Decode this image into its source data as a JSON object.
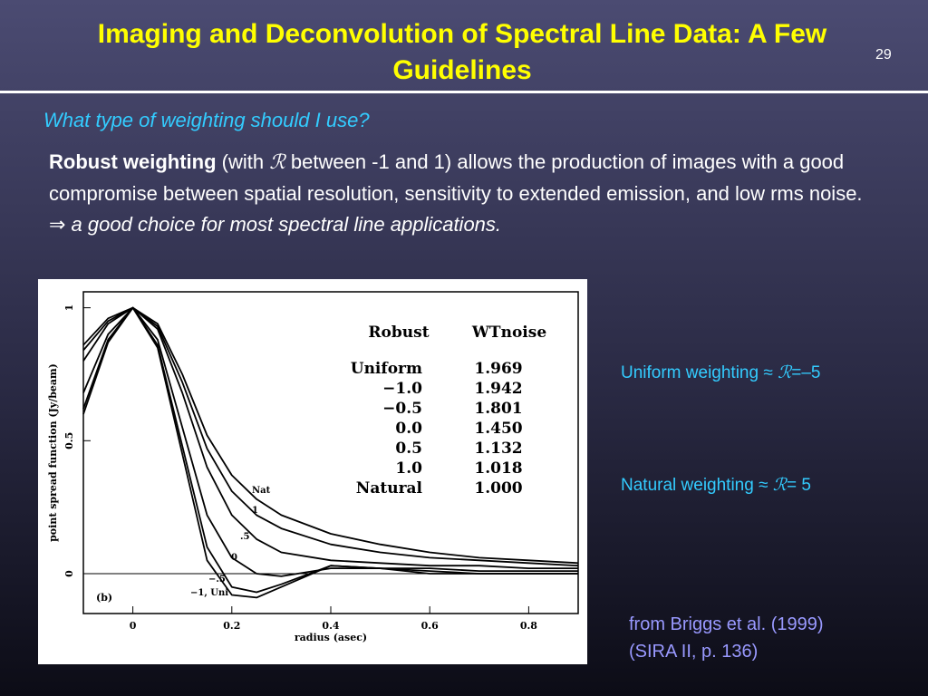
{
  "header": {
    "title": "Imaging and Deconvolution of Spectral Line Data: A Few Guidelines",
    "page_number": "29"
  },
  "subtitle": "What type of weighting should I use?",
  "body": {
    "bold": "Robust weighting",
    "text1": " (with ",
    "symbol": "ℛ",
    "text2": " between -1 and 1) allows the production of images with a good compromise between spatial resolution, sensitivity to extended emission, and low rms noise.",
    "arrow": "⇒",
    "conclusion": " a good choice for most spectral line applications."
  },
  "notes": {
    "uniform": {
      "text": "Uniform weighting ≈ ",
      "symbol": "ℛ",
      "value": "=–5"
    },
    "natural": {
      "text": "Natural weighting ≈ ",
      "symbol": "ℛ",
      "value": "= 5"
    },
    "source": [
      "from Briggs et al. (1999)",
      "(SIRA II, p. 136)"
    ]
  },
  "chart_data": {
    "type": "line",
    "x_label": "radius (asec)",
    "y_label": "point spread function (Jy/beam)",
    "panel_label": "(b)",
    "x": [
      -0.1,
      -0.05,
      0,
      0.05,
      0.1,
      0.15,
      0.2,
      0.25,
      0.3,
      0.4,
      0.5,
      0.6,
      0.7,
      0.8,
      0.9
    ],
    "series": [
      {
        "name": "Nat",
        "color": "#000000",
        "values": [
          0.86,
          0.96,
          1,
          0.94,
          0.75,
          0.52,
          0.37,
          0.28,
          0.22,
          0.15,
          0.11,
          0.08,
          0.06,
          0.05,
          0.04
        ]
      },
      {
        "name": "1",
        "color": "#000000",
        "values": [
          0.84,
          0.95,
          1,
          0.93,
          0.72,
          0.47,
          0.31,
          0.22,
          0.17,
          0.11,
          0.08,
          0.06,
          0.05,
          0.04,
          0.03
        ]
      },
      {
        "name": ".5",
        "color": "#000000",
        "values": [
          0.8,
          0.94,
          1,
          0.92,
          0.68,
          0.4,
          0.22,
          0.13,
          0.08,
          0.05,
          0.04,
          0.03,
          0.03,
          0.02,
          0.02
        ]
      },
      {
        "name": "0",
        "color": "#000000",
        "values": [
          0.68,
          0.9,
          1,
          0.88,
          0.55,
          0.22,
          0.06,
          0.0,
          -0.01,
          0.02,
          0.02,
          0.02,
          0.01,
          0.01,
          0.01
        ]
      },
      {
        "name": "−.5",
        "color": "#000000",
        "values": [
          0.62,
          0.88,
          1,
          0.86,
          0.48,
          0.1,
          -0.05,
          -0.07,
          -0.04,
          0.03,
          0.02,
          0.01,
          0.0,
          0.0,
          0.0
        ]
      },
      {
        "name": "−1, Uni",
        "color": "#000000",
        "values": [
          0.6,
          0.87,
          1,
          0.85,
          0.45,
          0.05,
          -0.08,
          -0.09,
          -0.05,
          0.03,
          0.02,
          0.0,
          0.0,
          0.0,
          0.0
        ]
      }
    ],
    "xlim": [
      -0.1,
      0.9
    ],
    "ylim": [
      -0.15,
      1.06
    ],
    "xticks": [
      0,
      0.2,
      0.4,
      0.6,
      0.8
    ],
    "yticks": [
      0,
      0.5,
      1
    ],
    "zero_line": true,
    "table": {
      "header": [
        "Robust",
        "WTnoise"
      ],
      "rows": [
        [
          "Uniform",
          "1.969"
        ],
        [
          "−1.0",
          "1.942"
        ],
        [
          "−0.5",
          "1.801"
        ],
        [
          "0.0",
          "1.450"
        ],
        [
          "0.5",
          "1.132"
        ],
        [
          "1.0",
          "1.018"
        ],
        [
          "Natural",
          "1.000"
        ]
      ]
    }
  }
}
